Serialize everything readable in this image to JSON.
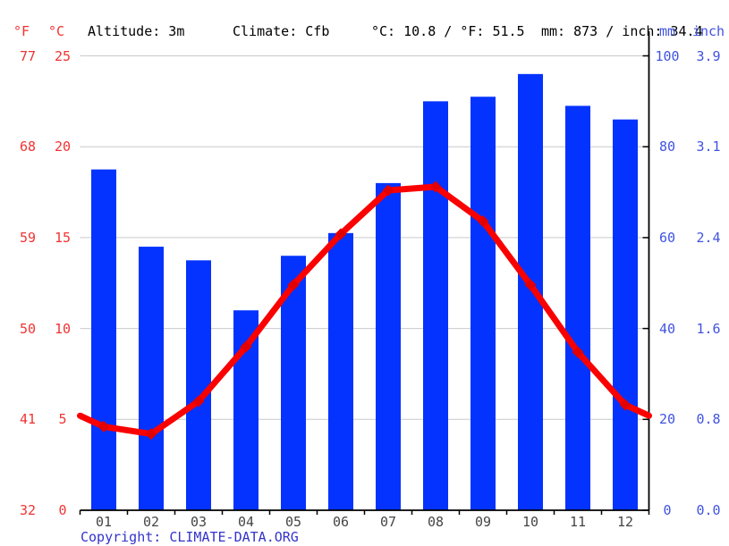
{
  "header": {
    "fahrenheit_label": "°F",
    "celsius_label": "°C",
    "altitude": "Altitude: 3m",
    "climate": "Climate: Cfb",
    "temperature_summary": "°C: 10.8 / °F: 51.5",
    "precipitation_summary": "mm: 873 / inch: 34.4",
    "mm_label": "mm",
    "inch_label": "inch"
  },
  "chart_data": {
    "type": "bar",
    "subtype": "climate chart: precipitation bars + temperature line",
    "categories": [
      "01",
      "02",
      "03",
      "04",
      "05",
      "06",
      "07",
      "08",
      "09",
      "10",
      "11",
      "12"
    ],
    "series": [
      {
        "name": "Precipitation",
        "type": "bar",
        "unit": "mm",
        "values": [
          75,
          58,
          55,
          44,
          56,
          61,
          72,
          90,
          91,
          96,
          89,
          86
        ]
      },
      {
        "name": "Average temperature",
        "type": "line",
        "unit": "°C",
        "values": [
          4.6,
          4.2,
          6.0,
          9.0,
          12.4,
          15.2,
          17.6,
          17.8,
          15.9,
          12.4,
          8.7,
          5.8
        ]
      }
    ],
    "left_axis": {
      "units": [
        "°F",
        "°C"
      ],
      "c_range": [
        0,
        25
      ],
      "f_ticks": [
        "77",
        "68",
        "59",
        "50",
        "41",
        "32"
      ],
      "c_ticks": [
        "25",
        "20",
        "15",
        "10",
        "5",
        "0"
      ]
    },
    "right_axis": {
      "units": [
        "mm",
        "inch"
      ],
      "mm_range": [
        0,
        100
      ],
      "mm_ticks": [
        "100",
        "80",
        "60",
        "40",
        "20",
        "0"
      ],
      "inch_ticks": [
        "3.9",
        "3.1",
        "2.4",
        "1.6",
        "0.8",
        "0.0"
      ],
      "grid_mm": [
        100,
        80,
        60,
        40,
        20
      ]
    },
    "grid": true,
    "legend": "none",
    "annotations": {
      "altitude": "Altitude: 3m",
      "climate_classification": "Climate: Cfb",
      "annual_mean_temperature": "°C: 10.8 / °F: 51.5",
      "annual_precipitation": "mm: 873 / inch: 34.4"
    }
  },
  "footer": {
    "copyright_label": "Copyright:",
    "site": "CLIMATE-DATA.ORG"
  },
  "colors": {
    "bar": "#0433ff",
    "line": "#fb0000",
    "marker": "#e30000",
    "grid": "#c9c9c9",
    "axis": "#000000",
    "red_label": "#f03333",
    "blue_label": "#4053e0",
    "month_label": "#454545",
    "copyright": "#3333cc",
    "background": "#ffffff"
  }
}
